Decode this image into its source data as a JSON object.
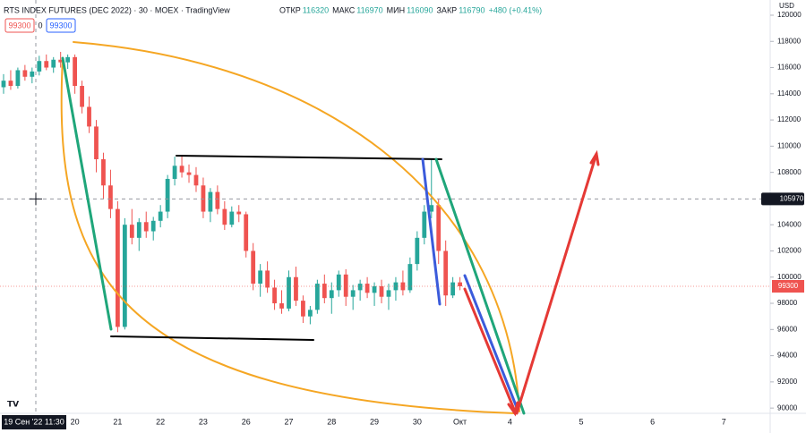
{
  "chart_data": {
    "type": "candlestick",
    "title": "RTS INDEX FUTURES (DEC 2022) · 30 · MOEX · TradingView",
    "ohlc_labels": {
      "open_label": "ОТКР",
      "open": "116320",
      "high_label": "МАКС",
      "high": "116970",
      "low_label": "МИН",
      "low": "116090",
      "close_label": "ЗАКР",
      "close": "116790",
      "change": "+480 (+0.41%)"
    },
    "order_buttons": {
      "sell": "99300",
      "spread": "0",
      "buy": "99300"
    },
    "currency": "USD",
    "crosshair_time": "19 Сен '22 11:30",
    "crosshair_price": 105970,
    "last_price": 99300,
    "up_color": "#26a69a",
    "down_color": "#ef5350",
    "grid": false,
    "ylim": [
      89600,
      121160
    ],
    "yticks": [
      90000,
      92000,
      94000,
      96000,
      98000,
      100000,
      102000,
      104000,
      106000,
      108000,
      110000,
      112000,
      114000,
      116000,
      118000,
      120000
    ],
    "categories": [
      null,
      null,
      null,
      null,
      null,
      null,
      null,
      null,
      null,
      null,
      "20",
      null,
      null,
      null,
      null,
      null,
      "21",
      null,
      null,
      null,
      null,
      null,
      "22",
      null,
      null,
      null,
      null,
      null,
      "23",
      null,
      null,
      null,
      null,
      null,
      "26",
      null,
      null,
      null,
      null,
      null,
      "27",
      null,
      null,
      null,
      null,
      null,
      "28",
      null,
      null,
      null,
      null,
      null,
      "29",
      null,
      null,
      null,
      null,
      null,
      "30",
      null,
      null,
      null,
      null,
      null,
      "Окт",
      null,
      null,
      null,
      null,
      null,
      null,
      "4",
      null,
      null,
      null,
      null,
      null,
      null,
      null,
      null,
      null,
      "5",
      null,
      null,
      null,
      null,
      null,
      null,
      null,
      null,
      null,
      "6",
      null,
      null,
      null,
      null,
      null,
      null,
      null,
      null,
      null,
      "7",
      null,
      null,
      null,
      null,
      null,
      null
    ],
    "open": [
      114500,
      115000,
      114600,
      115800,
      115300,
      115700,
      116500,
      116000,
      116600,
      116400,
      116800,
      114600,
      113000,
      111500,
      109000,
      107000,
      105200,
      96200,
      104000,
      103000,
      104200,
      103500,
      104300,
      105000,
      107500,
      108500,
      108000,
      107800,
      107000,
      105000,
      106500,
      105200,
      104000,
      105000,
      104800,
      102000,
      99500,
      100500,
      99200,
      98000,
      97600,
      100000,
      98200,
      97000,
      97500,
      99500,
      98400,
      99000,
      100200,
      98500,
      99000,
      99500,
      98800,
      99300,
      98500,
      99000,
      99600,
      99000,
      101000,
      103000,
      105000,
      105500,
      102000,
      98600,
      99600,
      null,
      null,
      null,
      null,
      null,
      null,
      null,
      null,
      null,
      null,
      null,
      null,
      null,
      null,
      null,
      null,
      null,
      null,
      null,
      null,
      null,
      null,
      null,
      null,
      null,
      null,
      null,
      null,
      null,
      null,
      null,
      null,
      null,
      null,
      null,
      null,
      null,
      null,
      null,
      null,
      null,
      null,
      null
    ],
    "high": [
      115500,
      115800,
      116000,
      116200,
      116000,
      116900,
      117000,
      116800,
      117200,
      117000,
      117000,
      115000,
      113800,
      112000,
      109500,
      108200,
      105800,
      104500,
      105200,
      104500,
      105000,
      104600,
      105500,
      107800,
      109200,
      109300,
      108600,
      108400,
      107600,
      106800,
      107000,
      105800,
      105400,
      105500,
      105000,
      102600,
      101000,
      101200,
      99800,
      99000,
      100500,
      100800,
      98600,
      97800,
      99800,
      100200,
      99600,
      100500,
      100600,
      99400,
      99800,
      100000,
      99600,
      99800,
      99500,
      100000,
      100500,
      101500,
      103500,
      105500,
      109000,
      106000,
      102800,
      100000,
      100000,
      null,
      null,
      null,
      null,
      null,
      null,
      null,
      null,
      null,
      null,
      null,
      null,
      null,
      null,
      null,
      null,
      null,
      null,
      null,
      null,
      null,
      null,
      null,
      null,
      null,
      null,
      null,
      null,
      null,
      null,
      null,
      null,
      null,
      null,
      null,
      null,
      null,
      null,
      null,
      null,
      null,
      null,
      null
    ],
    "low": [
      114000,
      114300,
      114400,
      115000,
      114800,
      115400,
      115800,
      115600,
      116000,
      115900,
      114000,
      112500,
      111000,
      108000,
      106000,
      104500,
      95800,
      96000,
      102500,
      102000,
      103000,
      102800,
      103800,
      104500,
      107000,
      107600,
      107200,
      106500,
      104500,
      104200,
      104800,
      103600,
      103800,
      104200,
      101500,
      99000,
      98500,
      98800,
      97500,
      97200,
      97400,
      97800,
      96500,
      96400,
      97200,
      98000,
      97200,
      98500,
      97800,
      97500,
      98200,
      98400,
      97800,
      98000,
      97500,
      98200,
      98600,
      98800,
      100500,
      102500,
      104500,
      101000,
      97800,
      98400,
      99000,
      null,
      null,
      null,
      null,
      null,
      null,
      null,
      null,
      null,
      null,
      null,
      null,
      null,
      null,
      null,
      null,
      null,
      null,
      null,
      null,
      null,
      null,
      null,
      null,
      null,
      null,
      null,
      null,
      null,
      null,
      null,
      null,
      null,
      null,
      null,
      null,
      null,
      null,
      null,
      null,
      null,
      null,
      null
    ],
    "close": [
      115000,
      114600,
      115800,
      115300,
      115700,
      116500,
      116000,
      116600,
      116400,
      116800,
      114600,
      113000,
      111500,
      109000,
      107000,
      105200,
      96200,
      104000,
      103000,
      104200,
      103500,
      104300,
      105000,
      107500,
      108500,
      108000,
      107800,
      107000,
      105000,
      106500,
      105200,
      104000,
      105000,
      104800,
      102000,
      99500,
      100500,
      99200,
      98000,
      97600,
      100000,
      98200,
      97000,
      97500,
      99500,
      98400,
      99000,
      100200,
      98500,
      99000,
      99500,
      98800,
      99300,
      98500,
      99000,
      99600,
      99000,
      101000,
      103000,
      105000,
      105500,
      102000,
      98600,
      99600,
      99300,
      null,
      null,
      null,
      null,
      null,
      null,
      null,
      null,
      null,
      null,
      null,
      null,
      null,
      null,
      null,
      null,
      null,
      null,
      null,
      null,
      null,
      null,
      null,
      null,
      null,
      null,
      null,
      null,
      null,
      null,
      null,
      null,
      null,
      null,
      null,
      null,
      null,
      null,
      null,
      null,
      null,
      null,
      null
    ]
  }
}
